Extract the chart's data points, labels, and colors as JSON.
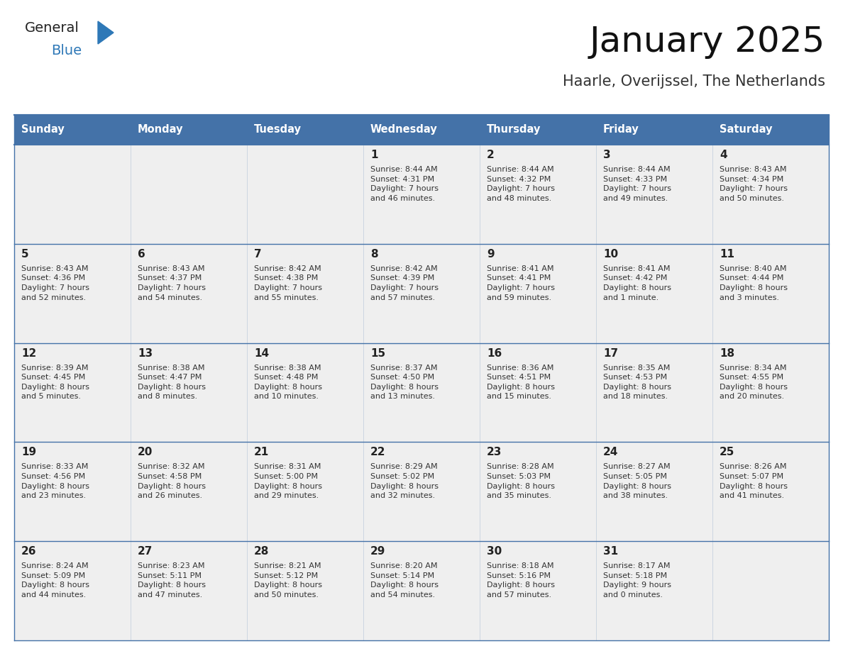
{
  "title": "January 2025",
  "subtitle": "Haarle, Overijssel, The Netherlands",
  "days_of_week": [
    "Sunday",
    "Monday",
    "Tuesday",
    "Wednesday",
    "Thursday",
    "Friday",
    "Saturday"
  ],
  "header_bg": "#4472A8",
  "header_text": "#FFFFFF",
  "cell_bg_odd": "#EFEFEF",
  "cell_bg_even": "#FFFFFF",
  "cell_bg_row1": "#EFEFEF",
  "text_color": "#333333",
  "day_number_color": "#222222",
  "line_color": "#4472A8",
  "title_color": "#111111",
  "subtitle_color": "#333333",
  "logo_general_color": "#222222",
  "logo_blue_color": "#2E78B7",
  "logo_triangle_color": "#2E78B7",
  "calendar_data": [
    [
      {
        "day": null,
        "info": null
      },
      {
        "day": null,
        "info": null
      },
      {
        "day": null,
        "info": null
      },
      {
        "day": 1,
        "info": "Sunrise: 8:44 AM\nSunset: 4:31 PM\nDaylight: 7 hours\nand 46 minutes."
      },
      {
        "day": 2,
        "info": "Sunrise: 8:44 AM\nSunset: 4:32 PM\nDaylight: 7 hours\nand 48 minutes."
      },
      {
        "day": 3,
        "info": "Sunrise: 8:44 AM\nSunset: 4:33 PM\nDaylight: 7 hours\nand 49 minutes."
      },
      {
        "day": 4,
        "info": "Sunrise: 8:43 AM\nSunset: 4:34 PM\nDaylight: 7 hours\nand 50 minutes."
      }
    ],
    [
      {
        "day": 5,
        "info": "Sunrise: 8:43 AM\nSunset: 4:36 PM\nDaylight: 7 hours\nand 52 minutes."
      },
      {
        "day": 6,
        "info": "Sunrise: 8:43 AM\nSunset: 4:37 PM\nDaylight: 7 hours\nand 54 minutes."
      },
      {
        "day": 7,
        "info": "Sunrise: 8:42 AM\nSunset: 4:38 PM\nDaylight: 7 hours\nand 55 minutes."
      },
      {
        "day": 8,
        "info": "Sunrise: 8:42 AM\nSunset: 4:39 PM\nDaylight: 7 hours\nand 57 minutes."
      },
      {
        "day": 9,
        "info": "Sunrise: 8:41 AM\nSunset: 4:41 PM\nDaylight: 7 hours\nand 59 minutes."
      },
      {
        "day": 10,
        "info": "Sunrise: 8:41 AM\nSunset: 4:42 PM\nDaylight: 8 hours\nand 1 minute."
      },
      {
        "day": 11,
        "info": "Sunrise: 8:40 AM\nSunset: 4:44 PM\nDaylight: 8 hours\nand 3 minutes."
      }
    ],
    [
      {
        "day": 12,
        "info": "Sunrise: 8:39 AM\nSunset: 4:45 PM\nDaylight: 8 hours\nand 5 minutes."
      },
      {
        "day": 13,
        "info": "Sunrise: 8:38 AM\nSunset: 4:47 PM\nDaylight: 8 hours\nand 8 minutes."
      },
      {
        "day": 14,
        "info": "Sunrise: 8:38 AM\nSunset: 4:48 PM\nDaylight: 8 hours\nand 10 minutes."
      },
      {
        "day": 15,
        "info": "Sunrise: 8:37 AM\nSunset: 4:50 PM\nDaylight: 8 hours\nand 13 minutes."
      },
      {
        "day": 16,
        "info": "Sunrise: 8:36 AM\nSunset: 4:51 PM\nDaylight: 8 hours\nand 15 minutes."
      },
      {
        "day": 17,
        "info": "Sunrise: 8:35 AM\nSunset: 4:53 PM\nDaylight: 8 hours\nand 18 minutes."
      },
      {
        "day": 18,
        "info": "Sunrise: 8:34 AM\nSunset: 4:55 PM\nDaylight: 8 hours\nand 20 minutes."
      }
    ],
    [
      {
        "day": 19,
        "info": "Sunrise: 8:33 AM\nSunset: 4:56 PM\nDaylight: 8 hours\nand 23 minutes."
      },
      {
        "day": 20,
        "info": "Sunrise: 8:32 AM\nSunset: 4:58 PM\nDaylight: 8 hours\nand 26 minutes."
      },
      {
        "day": 21,
        "info": "Sunrise: 8:31 AM\nSunset: 5:00 PM\nDaylight: 8 hours\nand 29 minutes."
      },
      {
        "day": 22,
        "info": "Sunrise: 8:29 AM\nSunset: 5:02 PM\nDaylight: 8 hours\nand 32 minutes."
      },
      {
        "day": 23,
        "info": "Sunrise: 8:28 AM\nSunset: 5:03 PM\nDaylight: 8 hours\nand 35 minutes."
      },
      {
        "day": 24,
        "info": "Sunrise: 8:27 AM\nSunset: 5:05 PM\nDaylight: 8 hours\nand 38 minutes."
      },
      {
        "day": 25,
        "info": "Sunrise: 8:26 AM\nSunset: 5:07 PM\nDaylight: 8 hours\nand 41 minutes."
      }
    ],
    [
      {
        "day": 26,
        "info": "Sunrise: 8:24 AM\nSunset: 5:09 PM\nDaylight: 8 hours\nand 44 minutes."
      },
      {
        "day": 27,
        "info": "Sunrise: 8:23 AM\nSunset: 5:11 PM\nDaylight: 8 hours\nand 47 minutes."
      },
      {
        "day": 28,
        "info": "Sunrise: 8:21 AM\nSunset: 5:12 PM\nDaylight: 8 hours\nand 50 minutes."
      },
      {
        "day": 29,
        "info": "Sunrise: 8:20 AM\nSunset: 5:14 PM\nDaylight: 8 hours\nand 54 minutes."
      },
      {
        "day": 30,
        "info": "Sunrise: 8:18 AM\nSunset: 5:16 PM\nDaylight: 8 hours\nand 57 minutes."
      },
      {
        "day": 31,
        "info": "Sunrise: 8:17 AM\nSunset: 5:18 PM\nDaylight: 9 hours\nand 0 minutes."
      },
      {
        "day": null,
        "info": null
      }
    ]
  ]
}
